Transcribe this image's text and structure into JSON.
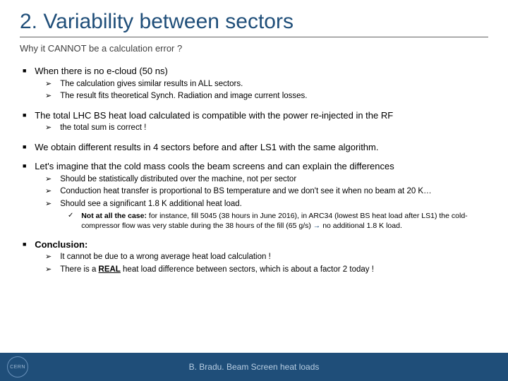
{
  "title": "2. Variability between sectors",
  "subtitle": "Why it CANNOT be a calculation error ?",
  "bullets": {
    "b1a": "When there is no e-cloud (50 ns)",
    "b1a_s1": "The calculation gives similar results in ALL sectors.",
    "b1a_s2": "The result fits theoretical Synch. Radiation and image current losses.",
    "b1b": "The total LHC BS heat load calculated is compatible with the power re-injected in the RF",
    "b1b_s1": "the total sum is correct !",
    "b1c": "We obtain different results in 4 sectors before and after LS1 with the same algorithm.",
    "b1d": "Let's imagine that the cold mass cools the beam screens and can explain the differences",
    "b1d_s1": "Should be statistically distributed over the machine, not per sector",
    "b1d_s2": "Conduction heat transfer is proportional to BS temperature and we don't see it when no beam at 20 K…",
    "b1d_s3": "Should see a significant 1.8 K additional heat load.",
    "b1d_s3_a_prefix": "Not at all the case:",
    "b1d_s3_a_rest": " for instance, fill 5045 (38 hours in June 2016), in ARC34 (lowest BS heat load after LS1) the cold-compressor flow was very stable during the 38 hours of the fill (65 g/s) ",
    "b1d_s3_a_arrow": "→",
    "b1d_s3_a_tail": " no additional 1.8 K load.",
    "b1e": "Conclusion:",
    "b1e_s1": "It cannot be due to a wrong average heat load calculation !",
    "b1e_s2_pre": "There is a ",
    "b1e_s2_real": "REAL",
    "b1e_s2_post": " heat load difference between sectors, which is about a factor 2 today !"
  },
  "marks": {
    "square": "■",
    "chev": "➢",
    "check": "✓"
  },
  "footer": {
    "text": "B. Bradu. Beam Screen heat loads",
    "logo": "CERN"
  },
  "colors": {
    "title": "#1f4e79",
    "footer_bg": "#1f4e79",
    "footer_text": "#b7cde2"
  }
}
